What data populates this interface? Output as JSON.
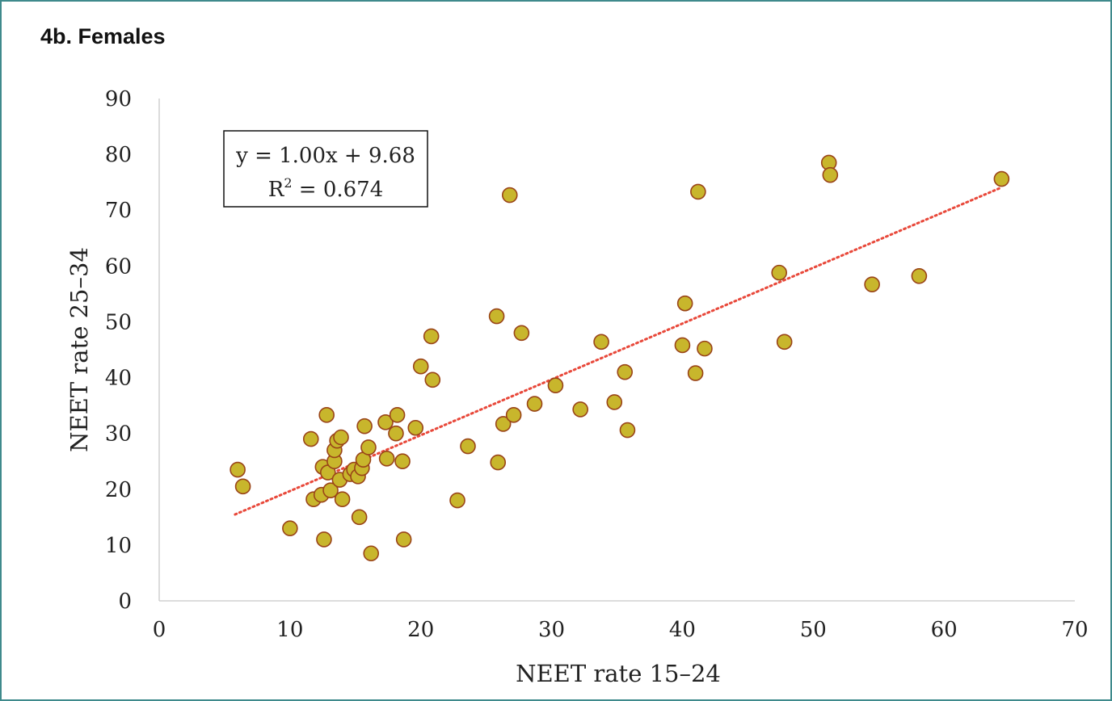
{
  "panel_title": "4b. Females",
  "chart_data": {
    "type": "scatter",
    "xlabel": "NEET rate 15–24",
    "ylabel": "NEET rate 25–34",
    "xlim": [
      0,
      70
    ],
    "ylim": [
      0,
      90
    ],
    "xticks": [
      0,
      10,
      20,
      30,
      40,
      50,
      60,
      70
    ],
    "yticks": [
      0,
      10,
      20,
      30,
      40,
      50,
      60,
      70,
      80,
      90
    ],
    "grid": false,
    "legend": "none",
    "colors": {
      "marker_fill": "#c8b62c",
      "marker_edge": "#9a4418",
      "trendline": "#e8483a",
      "axis": "#d0d0d0",
      "text": "#222222"
    },
    "trendline": {
      "slope": 1.0,
      "intercept": 9.68,
      "x_range": [
        5.8,
        64.4
      ],
      "style": "dotted",
      "equation_text": "y = 1.00x + 9.68",
      "r2_prefix": "R",
      "r2_sup": "2",
      "r2_suffix": " = 0.674",
      "annotation_position": "top-left"
    },
    "points": [
      {
        "x": 6.0,
        "y": 23.5
      },
      {
        "x": 6.4,
        "y": 20.5
      },
      {
        "x": 10.0,
        "y": 13.0
      },
      {
        "x": 11.6,
        "y": 29.0
      },
      {
        "x": 11.8,
        "y": 18.2
      },
      {
        "x": 12.4,
        "y": 19.0
      },
      {
        "x": 12.5,
        "y": 24.0
      },
      {
        "x": 12.6,
        "y": 11.0
      },
      {
        "x": 12.8,
        "y": 33.3
      },
      {
        "x": 12.9,
        "y": 23.0
      },
      {
        "x": 13.1,
        "y": 19.8
      },
      {
        "x": 13.4,
        "y": 25.0
      },
      {
        "x": 13.4,
        "y": 27.0
      },
      {
        "x": 13.6,
        "y": 28.7
      },
      {
        "x": 13.8,
        "y": 21.7
      },
      {
        "x": 13.9,
        "y": 29.3
      },
      {
        "x": 14.0,
        "y": 18.2
      },
      {
        "x": 14.6,
        "y": 22.7
      },
      {
        "x": 14.9,
        "y": 23.5
      },
      {
        "x": 15.2,
        "y": 22.3
      },
      {
        "x": 15.3,
        "y": 15.0
      },
      {
        "x": 15.5,
        "y": 23.8
      },
      {
        "x": 15.6,
        "y": 25.3
      },
      {
        "x": 15.7,
        "y": 31.3
      },
      {
        "x": 16.0,
        "y": 27.5
      },
      {
        "x": 16.2,
        "y": 8.5
      },
      {
        "x": 17.3,
        "y": 32.0
      },
      {
        "x": 17.4,
        "y": 25.5
      },
      {
        "x": 18.1,
        "y": 30.0
      },
      {
        "x": 18.2,
        "y": 33.3
      },
      {
        "x": 18.6,
        "y": 25.0
      },
      {
        "x": 18.7,
        "y": 11.0
      },
      {
        "x": 19.6,
        "y": 31.0
      },
      {
        "x": 20.0,
        "y": 42.0
      },
      {
        "x": 20.8,
        "y": 47.4
      },
      {
        "x": 20.9,
        "y": 39.6
      },
      {
        "x": 22.8,
        "y": 18.0
      },
      {
        "x": 23.6,
        "y": 27.7
      },
      {
        "x": 25.8,
        "y": 51.0
      },
      {
        "x": 25.9,
        "y": 24.8
      },
      {
        "x": 26.3,
        "y": 31.7
      },
      {
        "x": 26.8,
        "y": 72.7
      },
      {
        "x": 27.1,
        "y": 33.3
      },
      {
        "x": 27.7,
        "y": 48.0
      },
      {
        "x": 28.7,
        "y": 35.3
      },
      {
        "x": 30.3,
        "y": 38.6
      },
      {
        "x": 32.2,
        "y": 34.3
      },
      {
        "x": 33.8,
        "y": 46.4
      },
      {
        "x": 34.8,
        "y": 35.6
      },
      {
        "x": 35.6,
        "y": 41.0
      },
      {
        "x": 35.8,
        "y": 30.6
      },
      {
        "x": 40.0,
        "y": 45.8
      },
      {
        "x": 40.2,
        "y": 53.3
      },
      {
        "x": 41.0,
        "y": 40.8
      },
      {
        "x": 41.2,
        "y": 73.3
      },
      {
        "x": 41.7,
        "y": 45.2
      },
      {
        "x": 47.4,
        "y": 58.8
      },
      {
        "x": 47.8,
        "y": 46.4
      },
      {
        "x": 51.2,
        "y": 78.5
      },
      {
        "x": 51.3,
        "y": 76.3
      },
      {
        "x": 54.5,
        "y": 56.7
      },
      {
        "x": 58.1,
        "y": 58.2
      },
      {
        "x": 64.4,
        "y": 75.6
      }
    ]
  }
}
